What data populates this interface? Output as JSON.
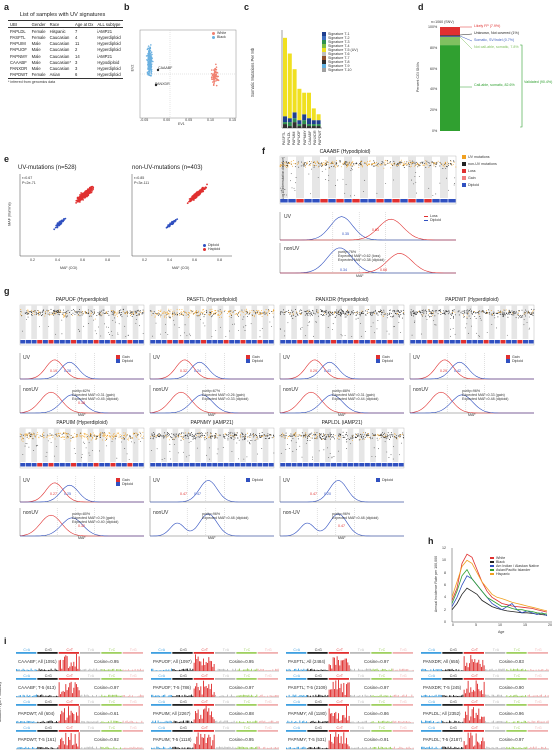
{
  "panels": {
    "a": {
      "label": "a",
      "title": "List of samples with UV signatures",
      "headers": [
        "UBI",
        "Gender",
        "Race",
        "Age at Dx",
        "ALL subtype"
      ],
      "rows": [
        [
          "PAPLDL",
          "Female",
          "Hispanic",
          "7",
          "iAMP21"
        ],
        [
          "PASFTL",
          "Female",
          "Caucasian",
          "4",
          "Hyperdiploid"
        ],
        [
          "PAPUIM",
          "Male",
          "Caucasian",
          "11",
          "Hyperdiploid"
        ],
        [
          "PAPUOF",
          "Male",
          "Caucasian",
          "2",
          "Hyperdiploid"
        ],
        [
          "PAPNMY",
          "Male",
          "Caucasian",
          "14",
          "iAMP21"
        ],
        [
          "CAAABF",
          "Male",
          "Caucasian*",
          "3",
          "Hypodiploid"
        ],
        [
          "PANXDR",
          "Male",
          "Caucasian",
          "3",
          "Hyperdiploid"
        ],
        [
          "PAPDWT",
          "Female",
          "Asian",
          "6",
          "Hyperdiploid"
        ]
      ],
      "footnote": "* inferred from genomics data"
    },
    "b": {
      "label": "b",
      "legend": [
        {
          "name": "White",
          "color": "#f08070"
        },
        {
          "name": "Black",
          "color": "#6ab0e0"
        }
      ],
      "annotations": [
        "CAAABF",
        "PANXDR"
      ],
      "ylabel": "EV2",
      "xlabel": "EV1",
      "xticks": [
        "-0.05",
        "0.00",
        "0.05",
        "0.10",
        "0.15"
      ]
    },
    "c": {
      "label": "c",
      "ylabel": "Somatic Mutations Per Mb",
      "legend": [
        "Signature T-1",
        "Signature T-2",
        "Signature T-3",
        "Signature T-4",
        "Signature T-5 (UV)",
        "Signature T-6",
        "Signature T-7",
        "Signature T-8",
        "Signature T-9",
        "Signature T-10"
      ],
      "legend_colors": [
        "#1f3f8f",
        "#3f6fbf",
        "#2f8f4f",
        "#7fbf3f",
        "#f0e020",
        "#bfbfbf",
        "#8f4f2f",
        "#2f2f2f",
        "#5fafdf",
        "#9f9f9f"
      ],
      "samples": [
        "PASFTL",
        "PAPLDL",
        "PAPUIM",
        "PAPUOF",
        "PAPNMY",
        "CAAABF",
        "PANXDR",
        "PAPDWT"
      ]
    },
    "d": {
      "label": "d",
      "ylabel": "Percent CGI SNVs",
      "yticks": [
        "100%",
        "80%",
        "60%",
        "40%",
        "20%",
        "0%"
      ],
      "top_note": "n=1060 (SNV)",
      "categories": [
        {
          "label": "Likely FP (7.9%)",
          "color": "#e03030"
        },
        {
          "label": "Unknown, Not covered (1%)",
          "color": "#222222"
        },
        {
          "label": "Somatic, SV/Indel (0.7%)",
          "color": "#4060c0"
        },
        {
          "label": "Not call-able, somatic, 7.8%",
          "color": "#80c060"
        },
        {
          "label": "Call-able, somatic, 82.6%",
          "color": "#30a030"
        }
      ],
      "validated": "Validated (90.4%)"
    },
    "e": {
      "label": "e",
      "left": {
        "title": "UV-mutations (n=528)",
        "stats": [
          "r=0.67",
          "P<2e-71"
        ]
      },
      "right": {
        "title": "non-UV-mutations (n=403)",
        "stats": [
          "r=0.85",
          "P<3e-111"
        ]
      },
      "xlabel": "MAF (CGI)",
      "ylabel": "MAF (Illumina)",
      "xticks": [
        "0.2",
        "0.4",
        "0.6",
        "0.8"
      ],
      "yticks": [
        "0.2",
        "0.4",
        "0.6",
        "0.8",
        "1.0"
      ],
      "legend": [
        {
          "name": "Diploid",
          "color": "#3050c0"
        },
        {
          "name": "Haploid",
          "color": "#e03030"
        }
      ]
    },
    "f": {
      "label": "f",
      "title": "CAAABF (Hypodiploid)",
      "legend": [
        {
          "name": "UV mutations",
          "color": "#f0a020"
        },
        {
          "name": "non-UV mutations",
          "color": "#222222"
        },
        {
          "name": "Loss",
          "color": "#e03030"
        },
        {
          "name": "Gain",
          "color": "#f08080"
        },
        {
          "name": "Diploid",
          "color": "#3050c0"
        }
      ],
      "ylabel": "Log10(intermutation distance)",
      "uv_label": "UV",
      "nonuv_label": "nonUV",
      "density_legend": [
        "Loss",
        "Diploid"
      ],
      "uv_peaks": [
        "0.35",
        "0.63"
      ],
      "nonuv_peaks": [
        "0.34",
        "0.68"
      ],
      "purity": [
        "purity=76%",
        "Expected MAF=0.62 (loss)",
        "Expected MAF=0.38 (diploid)"
      ],
      "xlabel": "MAF",
      "density_ylabel": "Density"
    },
    "g": {
      "label": "g",
      "samples": [
        {
          "title": "PAPUOF (Hyperdiploid)",
          "uv_peaks": [
            "0.19",
            "0.28",
            "0.38"
          ],
          "purity": [
            "purity=62%",
            "Expected MAF=0.31 (gain)",
            "Expected MAF=0.45 (diploid)"
          ],
          "legend": [
            "Gain",
            "Diploid"
          ]
        },
        {
          "title": "PASFTL (Hyperdiploid)",
          "uv_peaks": [
            "0.32",
            "0.24"
          ],
          "purity": [
            "purity=67%",
            "Expected MAF=0.26 (gain)",
            "Expected MAF=0.33 (diploid)"
          ],
          "legend": [
            "Gain",
            "Diploid"
          ]
        },
        {
          "title": "PANXDR (Hyperdiploid)",
          "uv_peaks": [
            "0.29",
            "0.43"
          ],
          "purity": [
            "purity=88%",
            "Expected MAF=0.31 (gain)",
            "Expected MAF=0.44 (diploid)"
          ],
          "legend": [
            "Gain",
            "Diploid"
          ]
        },
        {
          "title": "PAPDWT (Hyperdiploid)",
          "uv_peaks": [
            "0.29",
            "0.42"
          ],
          "purity": [
            "purity=96%",
            "Expected MAF=0.33 (gain)",
            "Expected MAF=0.48 (diploid)"
          ],
          "legend": [
            "Gain",
            "Diploid"
          ]
        },
        {
          "title": "PAPUIM (Hyperdiploid)",
          "uv_peaks": [
            "0.27",
            "0.25",
            "0.32"
          ],
          "purity": [
            "purity=80%",
            "Expected MAF=0.29 (gain)",
            "Expected MAF=0.40 (diploid)"
          ],
          "legend": [
            "Gain",
            "Diploid"
          ]
        },
        {
          "title": "PAPNMY (iAMP21)",
          "uv_peaks": [
            "0.47",
            "0.47"
          ],
          "purity": [
            "purity=96%",
            "Expected MAF=0.48 (diploid)"
          ],
          "legend": [
            "Diploid"
          ]
        },
        {
          "title": "PAPLDL (iAMP21)",
          "uv_peaks": [
            "0.47",
            "0.20",
            "0.47"
          ],
          "purity": [
            "purity=96%",
            "Expected MAF=0.48 (diploid)"
          ],
          "legend": [
            "Diploid"
          ]
        }
      ],
      "uv_label": "UV",
      "nonuv_label": "nonUV",
      "non_uv_label_alt": "non-UV",
      "ylabel": "Log10(intermutation distance)",
      "density_ylabel": "Density",
      "xlabel": "MAF"
    },
    "h": {
      "label": "h",
      "ylabel": "Annual Incidence Rate per 100,000",
      "xlabel": "Age",
      "xticks": [
        "0",
        "5",
        "10",
        "15",
        "20"
      ],
      "yticks": [
        "0",
        "2",
        "4",
        "6",
        "8",
        "10",
        "12"
      ],
      "legend": [
        {
          "name": "White",
          "color": "#e03030"
        },
        {
          "name": "Black",
          "color": "#222222"
        },
        {
          "name": "Am Indian / Alaskan Native",
          "color": "#3050c0"
        },
        {
          "name": "Asian/Pacific Islander",
          "color": "#30a030"
        },
        {
          "name": "Hispanic",
          "color": "#f0a020"
        }
      ]
    },
    "i": {
      "label": "i",
      "mut_types": [
        "C>A",
        "C>G",
        "C>T",
        "T>A",
        "T>C",
        "T>G"
      ],
      "mut_colors": [
        "#3fa0e0",
        "#222222",
        "#e03030",
        "#bbbbbb",
        "#9fd060",
        "#f0b0b0"
      ],
      "ylabel": "Mutation Type Probability",
      "cells": [
        {
          "top": "CAAABF; All (1091)",
          "top_cos": "Cosine=0.95",
          "bot": "CAAABF; T-5 (613)",
          "bot_cos": "Cosine=0.97"
        },
        {
          "top": "PAPUOF; All (1097)",
          "top_cos": "Cosine=0.95",
          "bot": "PAPUOF; T-5 (786)",
          "bot_cos": "Cosine=0.97"
        },
        {
          "top": "PASFTL; All (2484)",
          "top_cos": "Cosine=0.97",
          "bot": "PASFTL; T-5 (2109)",
          "bot_cos": "Cosine=0.97"
        },
        {
          "top": "PANXDR; All (655)",
          "top_cos": "Cosine=0.83",
          "bot": "PANXDR; T-5 (245)",
          "bot_cos": "Cosine=0.90"
        },
        {
          "top": "PAPDWT; All (604)",
          "top_cos": "Cosine=0.61",
          "bot": "PAPDWT; T-5 (161)",
          "bot_cos": "Cosine=0.92"
        },
        {
          "top": "PAPUIM; All (2267)",
          "top_cos": "Cosine=0.88",
          "bot": "PAPUIM; T-5 (1118)",
          "bot_cos": "Cosine=0.95"
        },
        {
          "top": "PAPNMY; All (1180)",
          "top_cos": "Cosine=0.86",
          "bot": "PAPNMY; T-5 (531)",
          "bot_cos": "Cosine=0.91"
        },
        {
          "top": "PAPLDL; All (2352)",
          "top_cos": "Cosine=0.96",
          "bot": "PAPLDL; T-5 (2187)",
          "bot_cos": "Cosine=0.97"
        }
      ]
    }
  },
  "chart_data": [
    {
      "type": "scatter",
      "panel": "b",
      "xlabel": "EV1",
      "ylabel": "EV2",
      "series": [
        {
          "name": "White"
        },
        {
          "name": "Black"
        }
      ]
    },
    {
      "type": "bar",
      "panel": "c",
      "ylabel": "Somatic Mutations Per Mb",
      "categories": [
        "PASFTL",
        "PAPLDL",
        "PAPUIM",
        "PAPUOF",
        "PAPNMY",
        "CAAABF",
        "PANXDR",
        "PAPDWT"
      ],
      "series": [
        {
          "name": "Signature T-5 (UV)",
          "values": [
            40,
            33,
            22,
            16,
            11,
            13,
            6,
            3
          ]
        },
        {
          "name": "Signature T-1",
          "values": [
            3,
            2,
            3,
            2,
            3,
            3,
            2,
            2
          ]
        },
        {
          "name": "Signature T-3",
          "values": [
            1,
            2,
            2,
            1,
            2,
            1,
            1,
            1
          ]
        },
        {
          "name": "Signature T-8",
          "values": [
            2,
            1,
            3,
            1,
            2,
            1,
            1,
            1
          ]
        }
      ]
    },
    {
      "type": "bar",
      "panel": "d",
      "ylabel": "Percent CGI SNVs",
      "categories": [
        "CGI SNVs"
      ],
      "series": [
        {
          "name": "Call-able, somatic",
          "values": [
            82.6
          ]
        },
        {
          "name": "Not call-able, somatic",
          "values": [
            7.8
          ]
        },
        {
          "name": "Somatic, SV/Indel",
          "values": [
            0.7
          ]
        },
        {
          "name": "Unknown, Not covered",
          "values": [
            1.0
          ]
        },
        {
          "name": "Likely FP",
          "values": [
            7.9
          ]
        }
      ],
      "ylim": [
        0,
        100
      ]
    },
    {
      "type": "line",
      "panel": "h",
      "xlabel": "Age",
      "ylabel": "Annual Incidence Rate per 100,000",
      "x": [
        0,
        1,
        2,
        3,
        4,
        5,
        6,
        7,
        8,
        9,
        10,
        11,
        12,
        13,
        14,
        15,
        16,
        17,
        18,
        19
      ],
      "series": [
        {
          "name": "White",
          "values": [
            3.5,
            5.5,
            9.5,
            11.0,
            10.5,
            8.5,
            6.5,
            5.0,
            4.0,
            3.5,
            3.0,
            2.8,
            2.6,
            2.5,
            2.4,
            2.3,
            2.2,
            2.0,
            1.8,
            1.6
          ]
        },
        {
          "name": "Black",
          "values": [
            2.0,
            3.0,
            4.5,
            5.5,
            5.0,
            4.5,
            3.5,
            3.0,
            2.5,
            2.2,
            2.0,
            1.8,
            1.7,
            1.6,
            1.5,
            1.5,
            1.4,
            1.3,
            1.2,
            1.1
          ]
        },
        {
          "name": "Am Indian / Alaskan Native",
          "values": [
            2.5,
            4.0,
            6.0,
            7.5,
            7.0,
            6.0,
            5.0,
            4.0,
            3.0,
            2.5,
            2.0,
            2.5,
            3.0,
            2.0,
            1.5,
            1.8,
            1.5,
            1.2,
            1.5,
            1.0
          ]
        },
        {
          "name": "Asian/Pacific Islander",
          "values": [
            3.0,
            5.0,
            7.5,
            8.5,
            7.0,
            6.0,
            5.0,
            4.0,
            3.5,
            3.0,
            2.5,
            2.5,
            2.2,
            2.0,
            2.0,
            1.8,
            1.7,
            1.5,
            1.4,
            1.3
          ]
        },
        {
          "name": "Hispanic",
          "values": [
            4.0,
            6.5,
            9.0,
            10.0,
            9.5,
            8.0,
            6.5,
            5.5,
            4.5,
            4.0,
            3.8,
            3.5,
            3.2,
            3.0,
            2.8,
            2.6,
            2.4,
            2.2,
            2.0,
            1.8
          ]
        }
      ],
      "ylim": [
        0,
        12
      ],
      "xlim": [
        0,
        20
      ]
    }
  ]
}
